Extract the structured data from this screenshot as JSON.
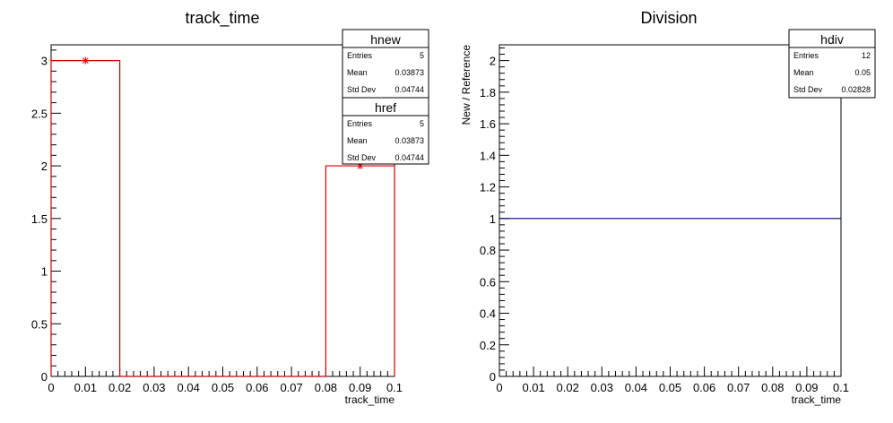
{
  "chart_data": [
    {
      "type": "histogram",
      "title": "track_time",
      "xlabel": "track_time",
      "ylabel": "",
      "xlim": [
        0,
        0.1
      ],
      "ylim": [
        0,
        3.15
      ],
      "xticks": [
        "0",
        "0.01",
        "0.02",
        "0.03",
        "0.04",
        "0.05",
        "0.06",
        "0.07",
        "0.08",
        "0.09",
        "0.1"
      ],
      "yticks": [
        "0",
        "0.5",
        "1",
        "1.5",
        "2",
        "2.5",
        "3"
      ],
      "bin_edges": [
        0,
        0.02,
        0.04,
        0.06,
        0.08,
        0.1
      ],
      "series": [
        {
          "name": "href",
          "style": "step",
          "color": "#d40000",
          "values": [
            3,
            0,
            0,
            0,
            2
          ]
        },
        {
          "name": "hnew",
          "style": "markers",
          "color": "#d40000",
          "points": [
            [
              0.01,
              3
            ],
            [
              0.09,
              2
            ]
          ]
        }
      ],
      "stats": [
        {
          "title": "hnew",
          "rows": [
            {
              "label": "Entries",
              "value": "5"
            },
            {
              "label": "Mean",
              "value": "0.03873"
            },
            {
              "label": "Std Dev",
              "value": "0.04744"
            }
          ]
        },
        {
          "title": "href",
          "rows": [
            {
              "label": "Entries",
              "value": "5"
            },
            {
              "label": "Mean",
              "value": "0.03873"
            },
            {
              "label": "Std Dev",
              "value": "0.04744"
            }
          ]
        }
      ]
    },
    {
      "type": "line",
      "title": "Division",
      "xlabel": "track_time",
      "ylabel": "New / Reference",
      "xlim": [
        0,
        0.1
      ],
      "ylim": [
        0,
        2.1
      ],
      "xticks": [
        "0",
        "0.01",
        "0.02",
        "0.03",
        "0.04",
        "0.05",
        "0.06",
        "0.07",
        "0.08",
        "0.09",
        "0.1"
      ],
      "yticks": [
        "0",
        "0.2",
        "0.4",
        "0.6",
        "0.8",
        "1",
        "1.2",
        "1.4",
        "1.6",
        "1.8",
        "2"
      ],
      "series": [
        {
          "name": "hdiv",
          "color": "#000080",
          "x": [
            0,
            0.1
          ],
          "y": [
            1,
            1
          ]
        }
      ],
      "stats": [
        {
          "title": "hdiv",
          "rows": [
            {
              "label": "Entries",
              "value": "12"
            },
            {
              "label": "Mean",
              "value": "0.05"
            },
            {
              "label": "Std Dev",
              "value": "0.02828"
            }
          ]
        }
      ]
    }
  ]
}
